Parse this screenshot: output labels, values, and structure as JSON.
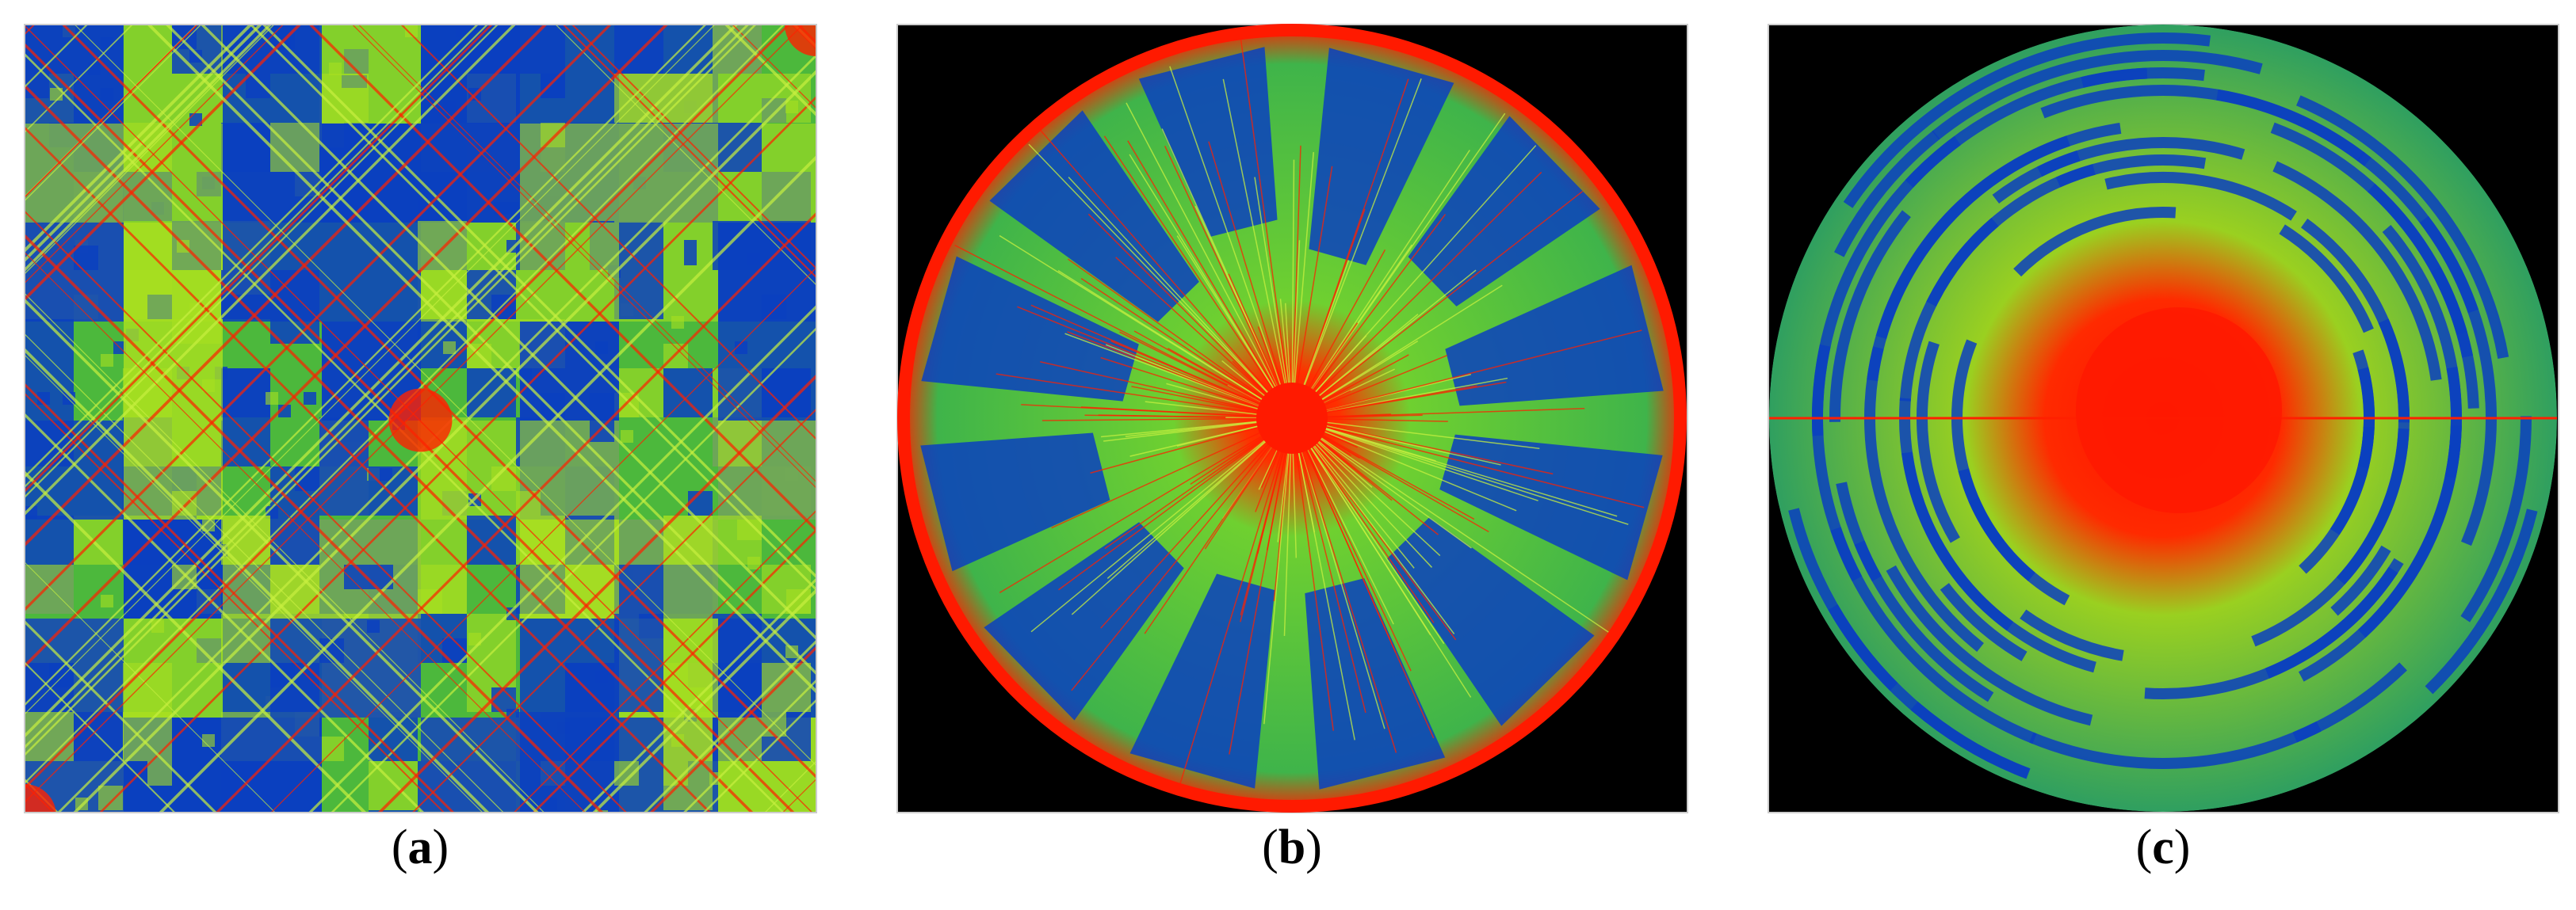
{
  "panels": [
    {
      "label": {
        "open": "(",
        "letter": "a",
        "close": ")"
      }
    },
    {
      "label": {
        "open": "(",
        "letter": "b",
        "close": ")"
      }
    },
    {
      "label": {
        "open": "(",
        "letter": "c",
        "close": ")"
      }
    }
  ]
}
